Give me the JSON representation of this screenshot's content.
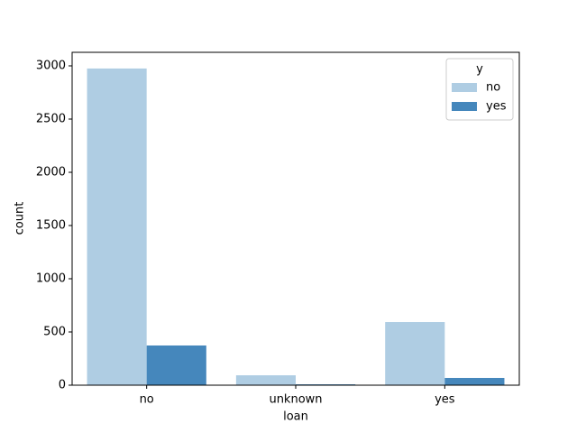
{
  "chart_data": {
    "type": "bar",
    "x_label": "loan",
    "y_label": "count",
    "categories": [
      "no",
      "unknown",
      "yes"
    ],
    "series": [
      {
        "name": "no",
        "color": "#afcde3",
        "values": [
          2975,
          93,
          593
        ]
      },
      {
        "name": "yes",
        "color": "#4587bc",
        "values": [
          373,
          8,
          68
        ]
      }
    ],
    "legend_title": "y",
    "legend_position": "upper right",
    "ylim": [
      0,
      3127
    ],
    "yticks": [
      0,
      500,
      1000,
      1500,
      2000,
      2500,
      3000
    ],
    "grid": false
  }
}
